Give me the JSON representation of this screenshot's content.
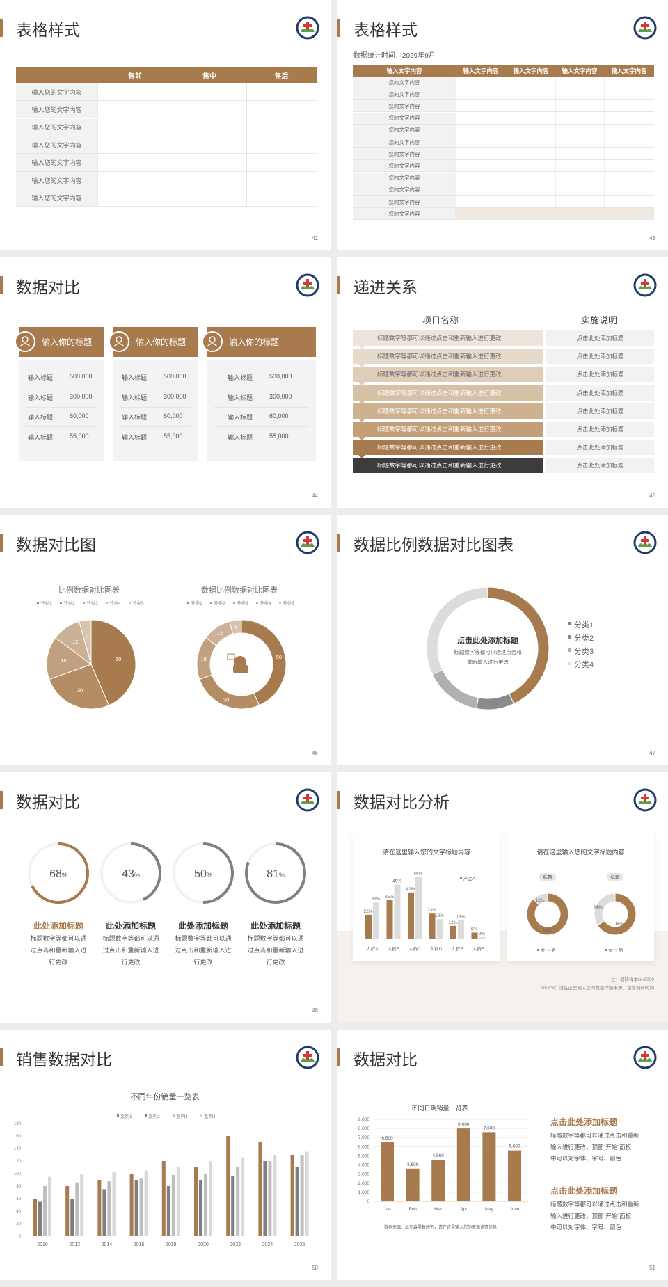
{
  "colors": {
    "accent": "#a87b4f",
    "dark": "#3c3c3c",
    "gray": "#808080",
    "light": "#f2f2f2",
    "beige": "#efe9e1"
  },
  "logo_icon": "school-emblem-icon",
  "s42": {
    "title": "表格样式",
    "page": "42",
    "headers": [
      "",
      "售前",
      "售中",
      "售后"
    ],
    "rows": [
      "输入您的文字内容",
      "输入您的文字内容",
      "输入您的文字内容",
      "输入您的文字内容",
      "输入您的文字内容",
      "输入您的文字内容",
      "输入您的文字内容"
    ]
  },
  "s43": {
    "title": "表格样式",
    "page": "43",
    "subtitle": "数据统计时间：2029年9月",
    "headers": [
      "输入文字内容",
      "输入文字内容",
      "输入文字内容",
      "输入文字内容",
      "输入文字内容"
    ],
    "rows": [
      "您的文字内容",
      "您的文字内容",
      "您的文字内容",
      "您的文字内容",
      "您的文字内容",
      "您的文字内容",
      "您的文字内容",
      "您的文字内容",
      "您的文字内容",
      "您的文字内容",
      "您的文字内容",
      "您的文字内容"
    ]
  },
  "s44": {
    "title": "数据对比",
    "page": "44",
    "cards": [
      {
        "icon": "tablet-icon",
        "title": "输入你的标题",
        "rows": [
          [
            "输入标题",
            "500,000"
          ],
          [
            "输入标题",
            "300,000"
          ],
          [
            "输入标题",
            "60,000"
          ],
          [
            "输入标题",
            "55,000"
          ]
        ]
      },
      {
        "icon": "user-icon",
        "title": "输入你的标题",
        "rows": [
          [
            "输入标题",
            "500,000"
          ],
          [
            "输入标题",
            "300,000"
          ],
          [
            "输入标题",
            "60,000"
          ],
          [
            "输入标题",
            "55,000"
          ]
        ]
      },
      {
        "icon": "group-icon",
        "title": "输入你的标题",
        "rows": [
          [
            "输入标题",
            "500,000"
          ],
          [
            "输入标题",
            "300,000"
          ],
          [
            "输入标题",
            "60,000"
          ],
          [
            "输入标题",
            "55,000"
          ]
        ]
      }
    ]
  },
  "s45": {
    "title": "递进关系",
    "page": "45",
    "col1": "项目名称",
    "col2": "实施说明",
    "rows": [
      [
        "标题数字等都可以通过点击和重新输入进行更改",
        "点击此处添加标题"
      ],
      [
        "标题数字等都可以通过点击和重新输入进行更改",
        "点击此处添加标题"
      ],
      [
        "标题数字等都可以通过点击和重新输入进行更改",
        "点击此处添加标题"
      ],
      [
        "标题数字等都可以通过点击和重新输入进行更改",
        "点击此处添加标题"
      ],
      [
        "标题数字等都可以通过点击和重新输入进行更改",
        "点击此处添加标题"
      ],
      [
        "标题数字等都可以通过点击和重新输入进行更改",
        "点击此处添加标题"
      ],
      [
        "标题数字等都可以通过点击和重新输入进行更改",
        "点击此处添加标题"
      ],
      [
        "标题数字等都可以通过点击和重新输入进行更改",
        "点击此处添加标题"
      ]
    ],
    "row_colors": [
      "#ede5db",
      "#e6dacb",
      "#dfcdb9",
      "#d6c0a6",
      "#cdb191",
      "#c29f79",
      "#a87b4f",
      "#3c3c3c"
    ]
  },
  "s46": {
    "title": "数据对比图",
    "page": "46"
  },
  "s47": {
    "title": "数据比例数据对比图表",
    "page": "47",
    "center_title": "点击此处添加标题",
    "center_text": [
      "标题数字等都可以通过点击和",
      "重新输入进行更改"
    ]
  },
  "s48": {
    "title": "数据对比",
    "page": "48",
    "items": [
      {
        "value": 68,
        "title": "此处添加标题",
        "text": [
          "标题数字等都可以通",
          "过点击和重新输入进",
          "行更改"
        ],
        "color": "#a87b4f"
      },
      {
        "value": 43,
        "title": "此处添加标题",
        "text": [
          "标题数字等都可以通",
          "过点击和重新输入进",
          "行更改"
        ],
        "color": "#808080"
      },
      {
        "value": 50,
        "title": "此处添加标题",
        "text": [
          "标题数字等都可以通",
          "过点击和重新输入进",
          "行更改"
        ],
        "color": "#808080"
      },
      {
        "value": 81,
        "title": "此处添加标题",
        "text": [
          "标题数字等都可以通",
          "过点击和重新输入进",
          "行更改"
        ],
        "color": "#808080"
      }
    ]
  },
  "s49": {
    "title": "数据对比分析",
    "page": "49",
    "card1_title": "请在这里输入您的文字标题内容",
    "card2_title": "请在这里输入您的文字标题内容",
    "donut_labels": [
      "标题",
      "标题"
    ],
    "donut_legend": [
      "女",
      "男"
    ],
    "note": "注：调研样本N=9000",
    "source": "Source：请在这里输入您的数据详细来源，包含调研时间"
  },
  "s50": {
    "title": "销售数据对比",
    "page": "50"
  },
  "s51": {
    "title": "数据对比",
    "page": "51",
    "source": "数据来源：尼尔森零售研究，请在这里输入您的来源详情信息",
    "blocks": [
      {
        "title": "点击此处添加标题",
        "text": [
          "标题数字等都可以通过点击和重新",
          "输入进行更改，顶部“开始”面板",
          "中可以对字体、字号、颜色"
        ]
      },
      {
        "title": "点击此处添加标题",
        "text": [
          "标题数字等都可以通过点击和重新",
          "输入进行更改，顶部“开始”面板",
          "中可以对字体、字号、颜色"
        ]
      }
    ]
  },
  "chart_data": [
    {
      "type": "pie",
      "title": "比例数据对比图表",
      "legend": [
        "分类1",
        "分类2",
        "分类3",
        "分类4",
        "分类5"
      ],
      "values": [
        50,
        30,
        18,
        12,
        5
      ],
      "legend_position": "top"
    },
    {
      "type": "pie",
      "variant": "donut",
      "title": "数据比例数据对比图表",
      "legend": [
        "分类1",
        "分类2",
        "分类3",
        "分类4",
        "分类5"
      ],
      "values": [
        50,
        30,
        18,
        12,
        5
      ],
      "legend_position": "top"
    },
    {
      "type": "pie",
      "variant": "donut",
      "legend": [
        "分类1",
        "分类2",
        "分类3",
        "分类4"
      ],
      "values": [
        43,
        10,
        15,
        32
      ],
      "colors": [
        "#a87b4f",
        "#8a8a8a",
        "#b0b0b0",
        "#dcdcdc"
      ],
      "legend_position": "right"
    },
    {
      "type": "bar",
      "categories": [
        "人群A",
        "人群B",
        "人群C",
        "人群D",
        "人群E",
        "人群F"
      ],
      "series": [
        {
          "name": "产品A",
          "values": [
            22,
            35,
            42,
            23,
            12,
            6
          ]
        },
        {
          "values": [
            33,
            49,
            56,
            18,
            17,
            2
          ]
        }
      ],
      "unit": "%"
    },
    {
      "type": "pie",
      "variant": "donut",
      "legend": [
        "女",
        "男"
      ],
      "values": [
        88,
        12
      ]
    },
    {
      "type": "pie",
      "variant": "donut",
      "legend": [
        "女",
        "男"
      ],
      "values": [
        66,
        34
      ]
    },
    {
      "type": "bar",
      "title": "不同年份销量一览表",
      "categories": [
        "2010",
        "2012",
        "2014",
        "2016",
        "2018",
        "2020",
        "2022",
        "2024",
        "2026"
      ],
      "series": [
        {
          "name": "系列1",
          "values": [
            60,
            80,
            90,
            100,
            120,
            110,
            160,
            150,
            130
          ]
        },
        {
          "name": "系列2",
          "values": [
            55,
            60,
            75,
            90,
            80,
            90,
            96,
            120,
            110
          ]
        },
        {
          "name": "系列3",
          "values": [
            80,
            86,
            88,
            92,
            98,
            100,
            110,
            120,
            130
          ]
        },
        {
          "name": "系列4",
          "values": [
            95,
            99,
            102,
            105,
            110,
            120,
            126,
            130,
            135
          ]
        }
      ],
      "ylim": [
        0,
        180
      ],
      "yticks": [
        0,
        20,
        40,
        60,
        80,
        100,
        120,
        140,
        160,
        180
      ],
      "legend_position": "top",
      "colors": [
        "#a87b4f",
        "#7f7f7f",
        "#bfbfbf",
        "#d9d9d9"
      ]
    },
    {
      "type": "bar",
      "title": "不同日期销量一览表",
      "categories": [
        "Jan",
        "Feb",
        "Mar",
        "Apr",
        "May",
        "June"
      ],
      "values": [
        6500,
        3600,
        4560,
        8000,
        7600,
        5600
      ],
      "labels": [
        "6,500",
        "3,600",
        "4,560",
        "8,000",
        "7,600",
        "5,600"
      ],
      "ylim": [
        0,
        9000
      ],
      "yticks": [
        "0",
        "1,000",
        "2,000",
        "3,000",
        "4,000",
        "5,000",
        "6,000",
        "7,000",
        "8,000",
        "9,000"
      ],
      "grid": true
    }
  ]
}
